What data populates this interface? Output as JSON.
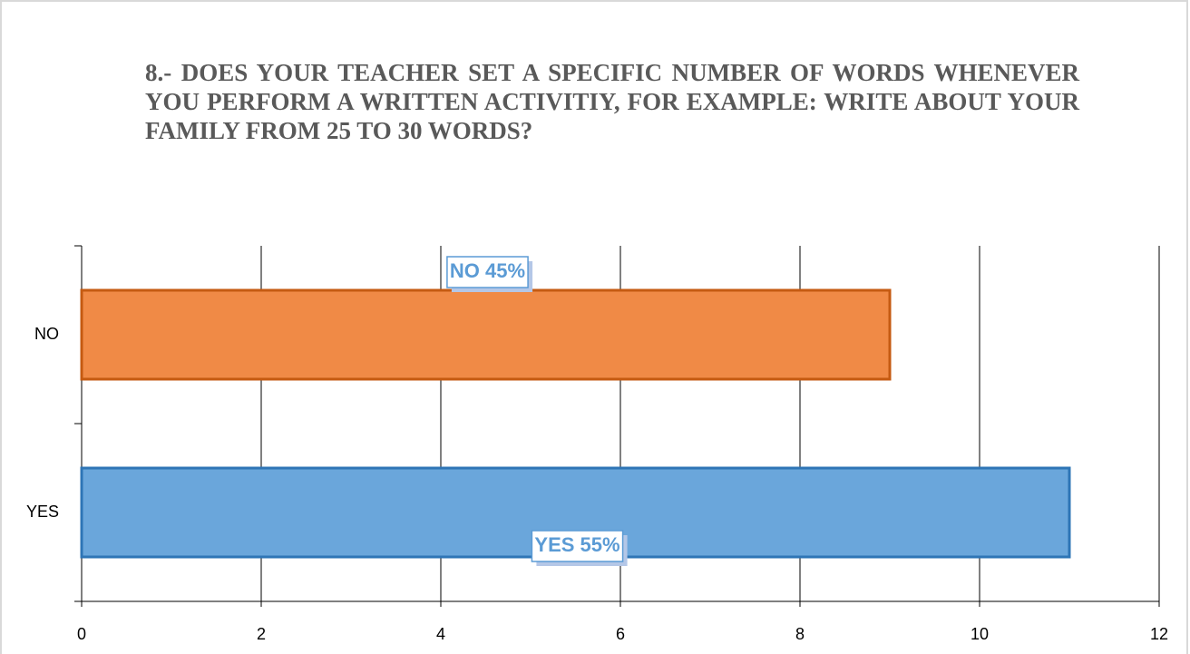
{
  "chart_data": {
    "type": "hbar",
    "title": "8.- DOES YOUR TEACHER SET A SPECIFIC NUMBER OF WORDS WHENEVER YOU PERFORM A WRITTEN ACTIVITIY, FOR EXAMPLE: WRITE ABOUT YOUR FAMILY FROM 25 TO 30 WORDS?",
    "categories": [
      "YES",
      "NO"
    ],
    "values": [
      11,
      9
    ],
    "colors": [
      "#6aa6db",
      "#f08a46"
    ],
    "edge_colors": [
      "#2e75b6",
      "#c55a11"
    ],
    "annotations": [
      "YES 55%",
      "NO 45%"
    ],
    "xlim": [
      0,
      12
    ],
    "xticks": [
      0,
      2,
      4,
      6,
      8,
      10,
      12
    ],
    "grid": true
  }
}
